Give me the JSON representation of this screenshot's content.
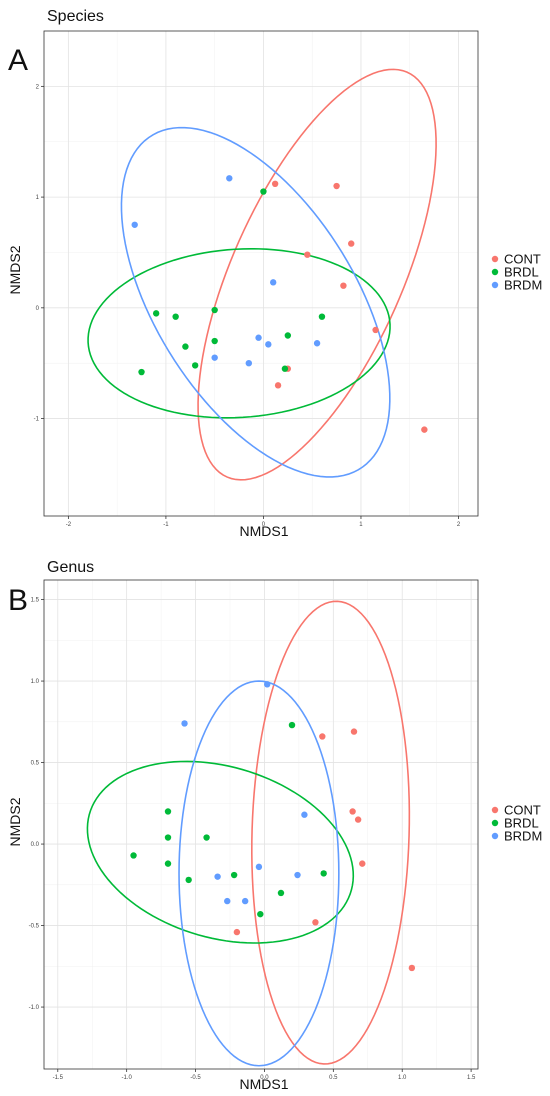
{
  "chart_data": [
    {
      "panel_letter": "A",
      "title": "Species",
      "type": "scatter",
      "xlabel": "NMDS1",
      "ylabel": "NMDS2",
      "xlim": [
        -2.25,
        2.2
      ],
      "ylim": [
        -1.88,
        2.5
      ],
      "xticks": [
        -2,
        -1,
        0,
        1,
        2
      ],
      "xtick_labels": [
        "-2",
        "-1",
        "0",
        "1",
        "2"
      ],
      "yticks": [
        -1,
        0,
        1,
        2
      ],
      "ytick_labels": [
        "-1",
        "0",
        "1",
        "2"
      ],
      "grid": true,
      "legend_position": "right",
      "series": [
        {
          "name": "CONT",
          "color": "#f8766d",
          "points": [
            [
              0.12,
              1.12
            ],
            [
              0.75,
              1.1
            ],
            [
              0.9,
              0.58
            ],
            [
              0.45,
              0.48
            ],
            [
              0.82,
              0.2
            ],
            [
              1.15,
              -0.2
            ],
            [
              0.15,
              -0.7
            ],
            [
              0.25,
              -0.55
            ],
            [
              1.65,
              -1.1
            ]
          ],
          "ellipse": {
            "cx": 0.55,
            "cy": 0.3,
            "rx": 2.05,
            "ry": 0.85,
            "angle_deg": 62
          }
        },
        {
          "name": "BRDL",
          "color": "#00ba38",
          "points": [
            [
              0.0,
              1.05
            ],
            [
              -1.1,
              -0.05
            ],
            [
              -0.9,
              -0.08
            ],
            [
              -0.5,
              -0.02
            ],
            [
              -1.25,
              -0.58
            ],
            [
              -0.8,
              -0.35
            ],
            [
              -0.7,
              -0.52
            ],
            [
              -0.5,
              -0.3
            ],
            [
              0.25,
              -0.25
            ],
            [
              0.6,
              -0.08
            ],
            [
              0.22,
              -0.55
            ]
          ],
          "ellipse": {
            "cx": -0.25,
            "cy": -0.23,
            "rx": 1.55,
            "ry": 0.76,
            "angle_deg": 3
          }
        },
        {
          "name": "BRDM",
          "color": "#619cff",
          "points": [
            [
              -0.35,
              1.17
            ],
            [
              -1.32,
              0.75
            ],
            [
              0.1,
              0.23
            ],
            [
              -0.5,
              -0.45
            ],
            [
              -0.05,
              -0.27
            ],
            [
              0.05,
              -0.33
            ],
            [
              -0.15,
              -0.5
            ],
            [
              0.55,
              -0.32
            ]
          ],
          "ellipse": {
            "cx": -0.08,
            "cy": 0.05,
            "rx": 1.85,
            "ry": 0.98,
            "angle_deg": -52
          }
        }
      ]
    },
    {
      "panel_letter": "B",
      "title": "Genus",
      "type": "scatter",
      "xlabel": "NMDS1",
      "ylabel": "NMDS2",
      "xlim": [
        -1.6,
        1.55
      ],
      "ylim": [
        -1.38,
        1.62
      ],
      "xticks": [
        -1.5,
        -1.0,
        -0.5,
        0.0,
        0.5,
        1.0,
        1.5
      ],
      "xtick_labels": [
        "-1.5",
        "-1.0",
        "-0.5",
        "0.0",
        "0.5",
        "1.0",
        "1.5"
      ],
      "yticks": [
        -1.0,
        -0.5,
        0.0,
        0.5,
        1.0,
        1.5
      ],
      "ytick_labels": [
        "-1.0",
        "-0.5",
        "0.0",
        "0.5",
        "1.0",
        "1.5"
      ],
      "grid": true,
      "legend_position": "right",
      "series": [
        {
          "name": "CONT",
          "color": "#f8766d",
          "points": [
            [
              0.42,
              0.66
            ],
            [
              0.65,
              0.69
            ],
            [
              0.64,
              0.2
            ],
            [
              0.68,
              0.15
            ],
            [
              0.71,
              -0.12
            ],
            [
              0.37,
              -0.48
            ],
            [
              -0.2,
              -0.54
            ],
            [
              1.07,
              -0.76
            ]
          ],
          "ellipse": {
            "cx": 0.48,
            "cy": 0.07,
            "rx": 1.42,
            "ry": 0.57,
            "angle_deg": 88
          }
        },
        {
          "name": "BRDL",
          "color": "#00ba38",
          "points": [
            [
              0.2,
              0.73
            ],
            [
              -0.7,
              0.2
            ],
            [
              -0.7,
              0.04
            ],
            [
              -0.7,
              -0.12
            ],
            [
              -0.95,
              -0.07
            ],
            [
              -0.42,
              0.04
            ],
            [
              -0.55,
              -0.22
            ],
            [
              -0.22,
              -0.19
            ],
            [
              -0.03,
              -0.43
            ],
            [
              0.12,
              -0.3
            ],
            [
              0.43,
              -0.18
            ]
          ],
          "ellipse": {
            "cx": -0.32,
            "cy": -0.05,
            "rx": 0.98,
            "ry": 0.53,
            "angle_deg": -12
          }
        },
        {
          "name": "BRDM",
          "color": "#619cff",
          "points": [
            [
              0.02,
              0.98
            ],
            [
              -0.58,
              0.74
            ],
            [
              0.29,
              0.18
            ],
            [
              -0.34,
              -0.2
            ],
            [
              -0.04,
              -0.14
            ],
            [
              -0.27,
              -0.35
            ],
            [
              -0.14,
              -0.35
            ],
            [
              0.24,
              -0.19
            ]
          ],
          "ellipse": {
            "cx": -0.04,
            "cy": -0.18,
            "rx": 1.18,
            "ry": 0.58,
            "angle_deg": 90
          }
        }
      ]
    }
  ]
}
